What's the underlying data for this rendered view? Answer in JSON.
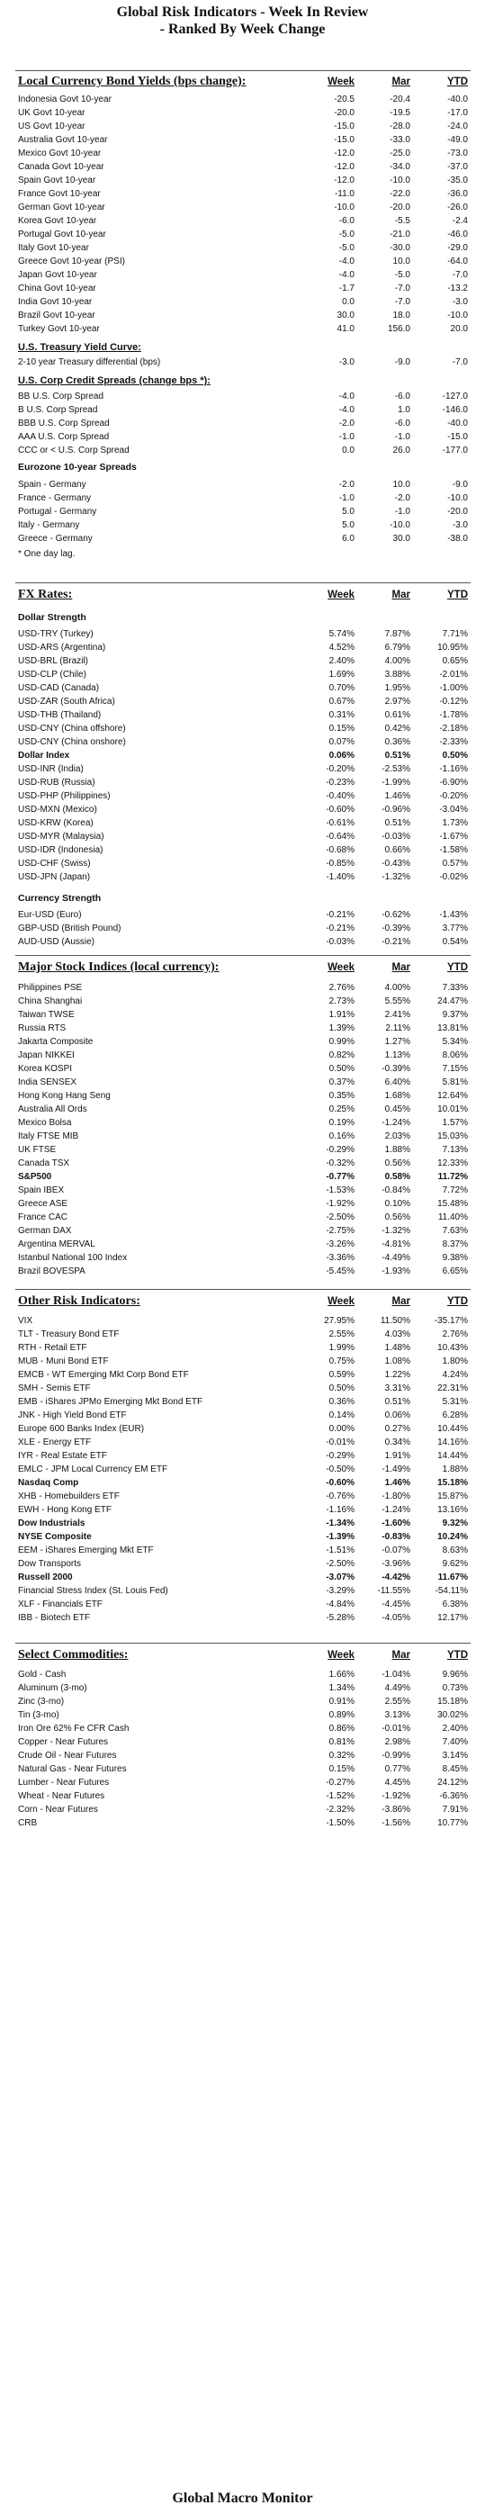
{
  "title1": "Global Risk Indicators - Week In Review",
  "title2": "- Ranked By Week Change",
  "footer": "Global Macro Monitor",
  "bonds": {
    "header": "Local Currency Bond Yields (bps change):",
    "cols": [
      "Week",
      "Mar",
      "YTD"
    ],
    "rows": [
      [
        "Indonesia Govt 10-year",
        "-20.5",
        "-20.4",
        "-40.0"
      ],
      [
        "UK Govt 10-year",
        "-20.0",
        "-19.5",
        "-17.0"
      ],
      [
        "US Govt 10-year",
        "-15.0",
        "-28.0",
        "-24.0"
      ],
      [
        "Australia Govt 10-year",
        "-15.0",
        "-33.0",
        "-49.0"
      ],
      [
        "Mexico Govt 10-year",
        "-12.0",
        "-25.0",
        "-73.0"
      ],
      [
        "Canada Govt 10-year",
        "-12.0",
        "-34.0",
        "-37.0"
      ],
      [
        "Spain Govt 10-year",
        "-12.0",
        "-10.0",
        "-35.0"
      ],
      [
        "France Govt 10-year",
        "-11.0",
        "-22.0",
        "-36.0"
      ],
      [
        "German Govt 10-year",
        "-10.0",
        "-20.0",
        "-26.0"
      ],
      [
        "Korea Govt 10-year",
        "-6.0",
        "-5.5",
        "-2.4"
      ],
      [
        "Portugal Govt 10-year",
        "-5.0",
        "-21.0",
        "-46.0"
      ],
      [
        "Italy Govt 10-year",
        "-5.0",
        "-30.0",
        "-29.0"
      ],
      [
        "Greece Govt 10-year (PSI)",
        "-4.0",
        "10.0",
        "-64.0"
      ],
      [
        "Japan Govt 10-year",
        "-4.0",
        "-5.0",
        "-7.0"
      ],
      [
        "China Govt 10-year",
        "-1.7",
        "-7.0",
        "-13.2"
      ],
      [
        "India Govt 10-year",
        "0.0",
        "-7.0",
        "-3.0"
      ],
      [
        "Brazil Govt 10-year",
        "30.0",
        "18.0",
        "-10.0"
      ],
      [
        "Turkey Govt 10-year",
        "41.0",
        "156.0",
        "20.0"
      ]
    ]
  },
  "curve": {
    "header": "U.S. Treasury Yield Curve:",
    "rows": [
      [
        "2-10 year Treasury differential (bps)",
        "-3.0",
        "-9.0",
        "-7.0"
      ]
    ]
  },
  "credit": {
    "header": "U.S. Corp Credit Spreads (change bps *):",
    "rows": [
      [
        "BB U.S. Corp Spread",
        "-4.0",
        "-6.0",
        "-127.0"
      ],
      [
        "B U.S. Corp Spread",
        "-4.0",
        "1.0",
        "-146.0"
      ],
      [
        "BBB U.S. Corp Spread",
        "-2.0",
        "-6.0",
        "-40.0"
      ],
      [
        "AAA U.S. Corp Spread",
        "-1.0",
        "-1.0",
        "-15.0"
      ],
      [
        "CCC or < U.S. Corp Spread",
        "0.0",
        "26.0",
        "-177.0"
      ]
    ]
  },
  "eurozone": {
    "header": "Eurozone 10-year Spreads",
    "rows": [
      [
        "Spain - Germany",
        "-2.0",
        "10.0",
        "-9.0"
      ],
      [
        "France - Germany",
        "-1.0",
        "-2.0",
        "-10.0"
      ],
      [
        "Portugal - Germany",
        "5.0",
        "-1.0",
        "-20.0"
      ],
      [
        "Italy - Germany",
        "5.0",
        "-10.0",
        "-3.0"
      ],
      [
        "Greece - Germany",
        "6.0",
        "30.0",
        "-38.0"
      ]
    ],
    "note": "* One day lag."
  },
  "fx": {
    "header": "FX Rates:",
    "sub1": "Dollar Strength",
    "rows1": [
      [
        "USD-TRY (Turkey)",
        "5.74%",
        "7.87%",
        "7.71%",
        false
      ],
      [
        "USD-ARS (Argentina)",
        "4.52%",
        "6.79%",
        "10.95%",
        false
      ],
      [
        "USD-BRL (Brazil)",
        "2.40%",
        "4.00%",
        "0.65%",
        false
      ],
      [
        "USD-CLP (Chile)",
        "1.69%",
        "3.88%",
        "-2.01%",
        false
      ],
      [
        "USD-CAD (Canada)",
        "0.70%",
        "1.95%",
        "-1.00%",
        false
      ],
      [
        "USD-ZAR (South Africa)",
        "0.67%",
        "2.97%",
        "-0.12%",
        false
      ],
      [
        "USD-THB (Thailand)",
        "0.31%",
        "0.61%",
        "-1.78%",
        false
      ],
      [
        "USD-CNY (China offshore)",
        "0.15%",
        "0.42%",
        "-2.18%",
        false
      ],
      [
        "USD-CNY (China onshore)",
        "0.07%",
        "0.36%",
        "-2.33%",
        false
      ],
      [
        "Dollar Index",
        "0.06%",
        "0.51%",
        "0.50%",
        true
      ],
      [
        "USD-INR (India)",
        "-0.20%",
        "-2.53%",
        "-1.16%",
        false
      ],
      [
        "USD-RUB (Russia)",
        "-0.23%",
        "-1.99%",
        "-6.90%",
        false
      ],
      [
        "USD-PHP (Philippines)",
        "-0.40%",
        "1.46%",
        "-0.20%",
        false
      ],
      [
        "USD-MXN (Mexico)",
        "-0.60%",
        "-0.96%",
        "-3.04%",
        false
      ],
      [
        "USD-KRW (Korea)",
        "-0.61%",
        "0.51%",
        "1.73%",
        false
      ],
      [
        "USD-MYR (Malaysia)",
        "-0.64%",
        "-0.03%",
        "-1.67%",
        false
      ],
      [
        "USD-IDR (Indonesia)",
        "-0.68%",
        "0.66%",
        "-1.58%",
        false
      ],
      [
        "USD-CHF (Swiss)",
        "-0.85%",
        "-0.43%",
        "0.57%",
        false
      ],
      [
        "USD-JPN (Japan)",
        "-1.40%",
        "-1.32%",
        "-0.02%",
        false
      ]
    ],
    "sub2": "Currency Strength",
    "rows2": [
      [
        "Eur-USD (Euro)",
        "-0.21%",
        "-0.62%",
        "-1.43%",
        false
      ],
      [
        "GBP-USD (British Pound)",
        "-0.21%",
        "-0.39%",
        "3.77%",
        false
      ],
      [
        "AUD-USD (Aussie)",
        "-0.03%",
        "-0.21%",
        "0.54%",
        false
      ]
    ]
  },
  "stocks": {
    "header": "Major Stock Indices (local currency):",
    "rows": [
      [
        "Philippines PSE",
        "2.76%",
        "4.00%",
        "7.33%",
        false
      ],
      [
        "China Shanghai",
        "2.73%",
        "5.55%",
        "24.47%",
        false
      ],
      [
        "Taiwan TWSE",
        "1.91%",
        "2.41%",
        "9.37%",
        false
      ],
      [
        "Russia RTS",
        "1.39%",
        "2.11%",
        "13.81%",
        false
      ],
      [
        "Jakarta Composite",
        "0.99%",
        "1.27%",
        "5.34%",
        false
      ],
      [
        "Japan NIKKEI",
        "0.82%",
        "1.13%",
        "8.06%",
        false
      ],
      [
        "Korea KOSPI",
        "0.50%",
        "-0.39%",
        "7.15%",
        false
      ],
      [
        "India SENSEX",
        "0.37%",
        "6.40%",
        "5.81%",
        false
      ],
      [
        "Hong Kong Hang Seng",
        "0.35%",
        "1.68%",
        "12.64%",
        false
      ],
      [
        "Australia All Ords",
        "0.25%",
        "0.45%",
        "10.01%",
        false
      ],
      [
        "Mexico Bolsa",
        "0.19%",
        "-1.24%",
        "1.57%",
        false
      ],
      [
        "Italy FTSE MIB",
        "0.16%",
        "2.03%",
        "15.03%",
        false
      ],
      [
        "UK FTSE",
        "-0.29%",
        "1.88%",
        "7.13%",
        false
      ],
      [
        "Canada TSX",
        "-0.32%",
        "0.56%",
        "12.33%",
        false
      ],
      [
        "S&P500",
        "-0.77%",
        "0.58%",
        "11.72%",
        true
      ],
      [
        "Spain IBEX",
        "-1.53%",
        "-0.84%",
        "7.72%",
        false
      ],
      [
        "Greece ASE",
        "-1.92%",
        "0.10%",
        "15.48%",
        false
      ],
      [
        "France CAC",
        "-2.50%",
        "0.56%",
        "11.40%",
        false
      ],
      [
        "German DAX",
        "-2.75%",
        "-1.32%",
        "7.63%",
        false
      ],
      [
        "Argentina MERVAL",
        "-3.26%",
        "-4.81%",
        "8.37%",
        false
      ],
      [
        "Istanbul National 100 Index",
        "-3.36%",
        "-4.49%",
        "9.38%",
        false
      ],
      [
        "Brazil BOVESPA",
        "-5.45%",
        "-1.93%",
        "6.65%",
        false
      ]
    ]
  },
  "risk": {
    "header": "Other Risk Indicators:",
    "rows": [
      [
        "VIX",
        "27.95%",
        "11.50%",
        "-35.17%",
        false
      ],
      [
        "TLT - Treasury Bond ETF",
        "2.55%",
        "4.03%",
        "2.76%",
        false
      ],
      [
        "RTH - Retail ETF",
        "1.99%",
        "1.48%",
        "10.43%",
        false
      ],
      [
        "MUB - Muni Bond ETF",
        "0.75%",
        "1.08%",
        "1.80%",
        false
      ],
      [
        "EMCB - WT Emerging Mkt Corp Bond ETF",
        "0.59%",
        "1.22%",
        "4.24%",
        false
      ],
      [
        "SMH - Semis ETF",
        "0.50%",
        "3.31%",
        "22.31%",
        false
      ],
      [
        "EMB - iShares JPMo Emerging Mkt Bond ETF",
        "0.36%",
        "0.51%",
        "5.31%",
        false
      ],
      [
        "JNK - High Yield Bond ETF",
        "0.14%",
        "0.06%",
        "6.28%",
        false
      ],
      [
        "Europe 600 Banks Index (EUR)",
        "0.00%",
        "0.27%",
        "10.44%",
        false
      ],
      [
        "XLE - Energy ETF",
        "-0.01%",
        "0.34%",
        "14.16%",
        false
      ],
      [
        "IYR - Real Estate ETF",
        "-0.29%",
        "1.91%",
        "14.44%",
        false
      ],
      [
        "EMLC - JPM Local Currency EM ETF",
        "-0.50%",
        "-1.49%",
        "1.88%",
        false
      ],
      [
        "Nasdaq Comp",
        "-0.60%",
        "1.46%",
        "15.18%",
        true
      ],
      [
        "XHB - Homebuilders ETF",
        "-0.76%",
        "-1.80%",
        "15.87%",
        false
      ],
      [
        "EWH - Hong Kong ETF",
        "-1.16%",
        "-1.24%",
        "13.16%",
        false
      ],
      [
        "Dow Industrials",
        "-1.34%",
        "-1.60%",
        "9.32%",
        true
      ],
      [
        "NYSE Composite",
        "-1.39%",
        "-0.83%",
        "10.24%",
        true
      ],
      [
        "EEM - iShares Emerging Mkt ETF",
        "-1.51%",
        "-0.07%",
        "8.63%",
        false
      ],
      [
        "Dow Transports",
        "-2.50%",
        "-3.96%",
        "9.62%",
        false
      ],
      [
        "Russell 2000",
        "-3.07%",
        "-4.42%",
        "11.67%",
        true
      ],
      [
        "Financial Stress Index (St. Louis Fed)",
        "-3.29%",
        "-11.55%",
        "-54.11%",
        false
      ],
      [
        "XLF - Financials ETF",
        "-4.84%",
        "-4.45%",
        "6.38%",
        false
      ],
      [
        "IBB - Biotech ETF",
        "-5.28%",
        "-4.05%",
        "12.17%",
        false
      ]
    ]
  },
  "commod": {
    "header": "Select Commodities:",
    "rows": [
      [
        "Gold - Cash",
        "1.66%",
        "-1.04%",
        "9.96%",
        false
      ],
      [
        "Aluminum (3-mo)",
        "1.34%",
        "4.49%",
        "0.73%",
        false
      ],
      [
        "Zinc (3-mo)",
        "0.91%",
        "2.55%",
        "15.18%",
        false
      ],
      [
        "Tin (3-mo)",
        "0.89%",
        "3.13%",
        "30.02%",
        false
      ],
      [
        "Iron Ore 62% Fe CFR Cash",
        "0.86%",
        "-0.01%",
        "2.40%",
        false
      ],
      [
        "Copper - Near Futures",
        "0.81%",
        "2.98%",
        "7.40%",
        false
      ],
      [
        "Crude Oil - Near Futures",
        "0.32%",
        "-0.99%",
        "3.14%",
        false
      ],
      [
        "Natural Gas - Near Futures",
        "0.15%",
        "0.77%",
        "8.45%",
        false
      ],
      [
        "Lumber - Near Futures",
        "-0.27%",
        "4.45%",
        "24.12%",
        false
      ],
      [
        "Wheat - Near Futures",
        "-1.52%",
        "-1.92%",
        "-6.36%",
        false
      ],
      [
        "Corn - Near Futures",
        "-2.32%",
        "-3.86%",
        "7.91%",
        false
      ],
      [
        "CRB",
        "-1.50%",
        "-1.56%",
        "10.77%",
        false
      ]
    ]
  }
}
